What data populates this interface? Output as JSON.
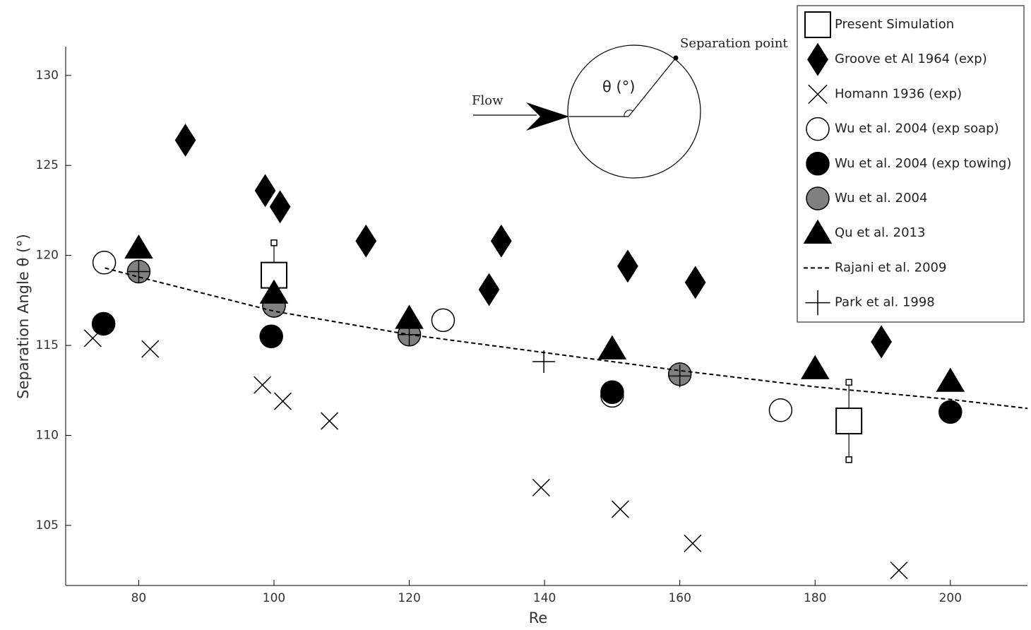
{
  "chart_data": {
    "type": "scatter",
    "xlabel": "Re",
    "ylabel": "Separation Angle θ (°)",
    "xlim": [
      69.2,
      211.4
    ],
    "ylim": [
      101.66,
      131.6
    ],
    "xticks": [
      80,
      100,
      120,
      140,
      160,
      180,
      200
    ],
    "yticks": [
      105,
      110,
      115,
      120,
      125,
      130
    ],
    "annotations": [
      "Flow",
      "θ (°)",
      "Separation point"
    ],
    "series": [
      {
        "name": "Present Simulation",
        "marker": "square",
        "color": "#ffffff",
        "x": [
          100,
          185
        ],
        "values": [
          118.9,
          110.8
        ],
        "errors": [
          1.8,
          2.15
        ]
      },
      {
        "name": "Groove et Al 1964 (exp)",
        "marker": "diamond",
        "color": "#000000",
        "x": [
          86.9,
          98.7,
          100.9,
          113.6,
          131.8,
          133.6,
          152.3,
          162.3,
          189.8
        ],
        "values": [
          126.4,
          123.6,
          122.7,
          120.8,
          118.1,
          120.8,
          119.4,
          118.5,
          115.2
        ]
      },
      {
        "name": "Homann 1936 (exp)",
        "marker": "x",
        "color": "#000000",
        "x": [
          73.2,
          81.7,
          98.3,
          101.3,
          108.2,
          139.5,
          151.2,
          161.9,
          192.4
        ],
        "values": [
          115.4,
          114.8,
          112.8,
          111.9,
          110.8,
          107.1,
          105.9,
          104,
          102.5
        ]
      },
      {
        "name": "Wu et al. 2004 (exp soap)",
        "marker": "circle",
        "color": "#ffffff",
        "x": [
          74.9,
          100,
          125,
          150,
          174.9
        ],
        "values": [
          119.6,
          117.2,
          116.4,
          112.2,
          111.4
        ]
      },
      {
        "name": "Wu et al. 2004 (exp towing)",
        "marker": "circle",
        "color": "#000000",
        "x": [
          74.8,
          99.6,
          150,
          200
        ],
        "values": [
          116.2,
          115.5,
          112.4,
          111.3
        ]
      },
      {
        "name": "Wu et al. 2004",
        "marker": "circle",
        "color": "#808080",
        "x": [
          80,
          100,
          120,
          160
        ],
        "values": [
          119.1,
          117.2,
          115.6,
          113.4
        ]
      },
      {
        "name": "Qu et al. 2013",
        "marker": "triangle",
        "color": "#000000",
        "x": [
          80,
          100,
          120,
          150,
          180,
          200
        ],
        "values": [
          120.4,
          117.9,
          116.5,
          114.8,
          113.7,
          113
        ]
      },
      {
        "name": "Rajani et al. 2009",
        "marker": "dashed-line",
        "color": "#000000",
        "x": [
          75,
          80,
          100,
          120,
          140,
          160,
          180,
          200,
          211.4
        ],
        "values": [
          119.3,
          118.8,
          116.9,
          115.6,
          114.6,
          113.6,
          112.7,
          112,
          111.5
        ]
      },
      {
        "name": "Park et al. 1998",
        "marker": "plus",
        "color": "#000000",
        "x": [
          80,
          120,
          139.9,
          160
        ],
        "values": [
          119.1,
          115.6,
          114.1,
          113.3
        ]
      }
    ]
  }
}
